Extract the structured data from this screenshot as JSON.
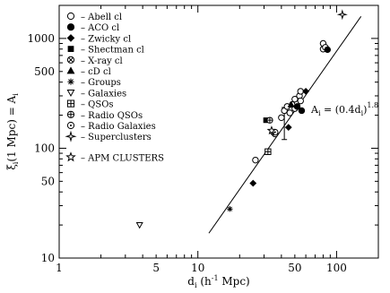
{
  "chart_data": {
    "type": "scatter",
    "xscale": "log",
    "yscale": "log",
    "xlim": [
      1,
      200
    ],
    "ylim": [
      10,
      2000
    ],
    "xlabel": "d",
    "xlabel_sub": "i",
    "xlabel_units_prefix": "(h",
    "xlabel_units_exp": "-1",
    "xlabel_units_suffix": " Mpc)",
    "ylabel": "ξ",
    "ylabel_sub": "i",
    "ylabel_rest": "(1 Mpc) = A",
    "ylabel_sub2": "i",
    "x_ticks": [
      {
        "value": 1,
        "label": "1"
      },
      {
        "value": 5,
        "label": "5"
      },
      {
        "value": 10,
        "label": "10"
      },
      {
        "value": 50,
        "label": "50"
      },
      {
        "value": 100,
        "label": "100"
      }
    ],
    "y_ticks": [
      {
        "value": 10,
        "label": "10"
      },
      {
        "value": 50,
        "label": "50"
      },
      {
        "value": 100,
        "label": "100"
      },
      {
        "value": 500,
        "label": "500"
      },
      {
        "value": 1000,
        "label": "1000"
      }
    ],
    "legend_placement": "top-left",
    "legend": [
      {
        "marker": "open-circle",
        "label": "– Abell cl"
      },
      {
        "marker": "filled-circle",
        "label": "– ACO cl"
      },
      {
        "marker": "filled-diamond",
        "label": "– Zwicky cl"
      },
      {
        "marker": "filled-square",
        "label": "– Shectman cl"
      },
      {
        "marker": "circle-x",
        "label": "– X-ray cl"
      },
      {
        "marker": "filled-triangle",
        "label": "– cD cl"
      },
      {
        "marker": "asterisk",
        "label": "– Groups"
      },
      {
        "marker": "open-triangle-down",
        "label": "– Galaxies"
      },
      {
        "marker": "square-plus",
        "label": "– QSOs"
      },
      {
        "marker": "circle-plus",
        "label": "– Radio QSOs"
      },
      {
        "marker": "circle-dot",
        "label": "– Radio Galaxies"
      },
      {
        "marker": "star4",
        "label": "– Superclusters"
      },
      {
        "marker": "open-star",
        "label": "– APM CLUSTERS"
      }
    ],
    "relation_label": "A",
    "relation_label_sub": "i",
    "relation_label_rest": " = (0.4d",
    "relation_label_sub2": "i",
    "relation_label_close": ")",
    "relation_label_exp": "1.8",
    "fit_line": {
      "coefficient": 0.4,
      "exponent": 1.8,
      "x_range": [
        12,
        150
      ]
    },
    "series": [
      {
        "marker": "open-circle",
        "points": [
          [
            40,
            190
          ],
          [
            42,
            220
          ],
          [
            44,
            240
          ],
          [
            46,
            210
          ],
          [
            48,
            250
          ],
          [
            50,
            230
          ],
          [
            52,
            260
          ],
          [
            54,
            300
          ],
          [
            55,
            270
          ],
          [
            50,
            280
          ],
          [
            80,
            900
          ],
          [
            80,
            800
          ],
          [
            83,
            830
          ],
          [
            55,
            330
          ],
          [
            26,
            78
          ],
          [
            36,
            135
          ]
        ]
      },
      {
        "marker": "filled-circle",
        "points": [
          [
            52,
            240
          ],
          [
            56,
            220
          ],
          [
            86,
            790
          ]
        ]
      },
      {
        "marker": "filled-diamond",
        "points": [
          [
            25,
            48
          ],
          [
            45,
            155
          ],
          [
            60,
            330
          ]
        ]
      },
      {
        "marker": "filled-square",
        "points": [
          [
            31,
            180
          ]
        ]
      },
      {
        "marker": "circle-x",
        "points": [
          [
            35,
            140
          ]
        ]
      },
      {
        "marker": "filled-triangle",
        "points": [
          [
            47,
            250
          ]
        ]
      },
      {
        "marker": "asterisk",
        "points": [
          [
            17,
            28
          ]
        ]
      },
      {
        "marker": "open-triangle-down",
        "points": [
          [
            3.8,
            20
          ]
        ]
      },
      {
        "marker": "square-plus",
        "points": [
          [
            32,
            93
          ]
        ]
      },
      {
        "marker": "circle-plus",
        "points": [
          [
            33,
            180
          ]
        ]
      },
      {
        "marker": "circle-dot",
        "points": [
          [
            36,
            140
          ]
        ]
      },
      {
        "marker": "star4",
        "points": [
          [
            110,
            1650
          ]
        ]
      },
      {
        "marker": "open-star",
        "points": [
          [
            34,
            145
          ]
        ]
      }
    ],
    "error_bars": [
      {
        "x": 42,
        "y": 180,
        "low": 120,
        "high": 235
      }
    ]
  }
}
